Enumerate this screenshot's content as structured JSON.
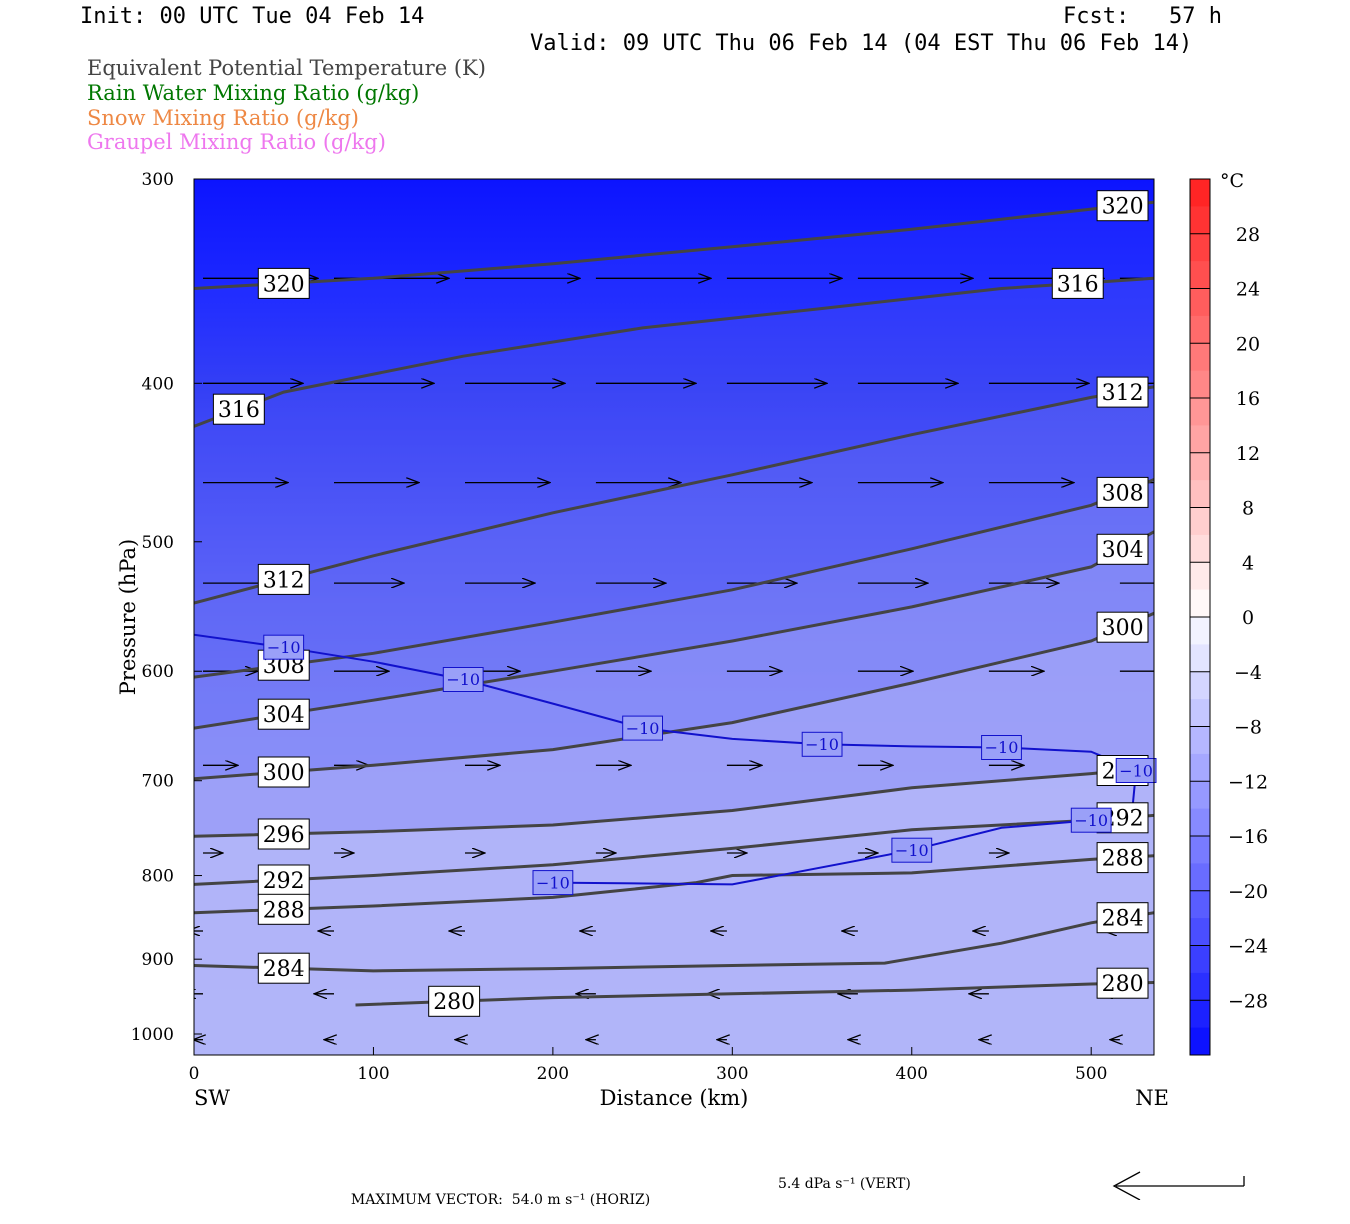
{
  "header": {
    "init": "Init: 00 UTC Tue 04 Feb 14",
    "fcst": "Fcst:   57 h",
    "valid": "Valid: 09 UTC Thu 06 Feb 14 (04 EST Thu 06 Feb 14)"
  },
  "legend": [
    {
      "text": "Equivalent Potential Temperature (K)",
      "color": "#444444"
    },
    {
      "text": "Rain Water Mixing Ratio (g/kg)",
      "color": "#007700"
    },
    {
      "text": "Snow Mixing Ratio (g/kg)",
      "color": "#ee8844"
    },
    {
      "text": "Graupel Mixing Ratio (g/kg)",
      "color": "#ee77ee"
    }
  ],
  "footer": {
    "max_vector_horiz": "MAXIMUM VECTOR:  54.0 m s⁻¹ (HORIZ)",
    "max_vector_vert": "5.4 dPa s⁻¹ (VERT)"
  },
  "chart_data": {
    "type": "heatmap",
    "xlabel": "Distance (km)",
    "ylabel": "Pressure (hPa)",
    "xlim": [
      0,
      535
    ],
    "ylim": [
      1030,
      300
    ],
    "y_scale": "log",
    "x_ticks": [
      0,
      100,
      200,
      300,
      400,
      500
    ],
    "y_ticks": [
      300,
      400,
      500,
      600,
      700,
      800,
      900,
      1000
    ],
    "x_end_labels": {
      "left": "SW",
      "right": "NE"
    },
    "colorbar": {
      "unit": "°C",
      "ticks": [
        28,
        24,
        20,
        16,
        12,
        8,
        4,
        0,
        -4,
        -8,
        -12,
        -16,
        -20,
        -24,
        -28
      ],
      "range": [
        -32,
        32
      ]
    },
    "theta_e_contours": [
      {
        "label": "320",
        "x": [
          0,
          100,
          200,
          300,
          400,
          500,
          535
        ],
        "y": [
          350,
          345,
          338,
          330,
          322,
          313,
          310
        ]
      },
      {
        "label": "316",
        "x": [
          0,
          50,
          150,
          250,
          350,
          450,
          535
        ],
        "y": [
          425,
          405,
          385,
          370,
          360,
          350,
          345
        ]
      },
      {
        "label": "312",
        "x": [
          0,
          100,
          200,
          300,
          400,
          500,
          535
        ],
        "y": [
          545,
          510,
          480,
          455,
          430,
          408,
          402
        ]
      },
      {
        "label": "308",
        "x": [
          0,
          100,
          200,
          300,
          400,
          500,
          535
        ],
        "y": [
          605,
          585,
          560,
          535,
          505,
          475,
          458
        ]
      },
      {
        "label": "304",
        "x": [
          0,
          100,
          200,
          300,
          400,
          500,
          535
        ],
        "y": [
          650,
          625,
          600,
          575,
          548,
          518,
          493
        ]
      },
      {
        "label": "300",
        "x": [
          0,
          100,
          200,
          300,
          400,
          500,
          535
        ],
        "y": [
          698,
          685,
          670,
          645,
          610,
          575,
          553
        ]
      },
      {
        "label": "296",
        "x": [
          0,
          100,
          200,
          300,
          400,
          500,
          535
        ],
        "y": [
          757,
          752,
          745,
          730,
          707,
          693,
          687
        ]
      },
      {
        "label": "292",
        "x": [
          0,
          100,
          200,
          300,
          400,
          500,
          535
        ],
        "y": [
          810,
          800,
          788,
          770,
          750,
          740,
          735
        ]
      },
      {
        "label": "288",
        "x": [
          0,
          100,
          200,
          280,
          300,
          400,
          500,
          535
        ],
        "y": [
          843,
          835,
          825,
          808,
          800,
          797,
          782,
          778
        ]
      },
      {
        "label": "284",
        "x": [
          0,
          100,
          200,
          300,
          385,
          450,
          500,
          535
        ],
        "y": [
          908,
          915,
          912,
          908,
          905,
          880,
          855,
          843
        ]
      },
      {
        "label": "280",
        "x": [
          90,
          200,
          300,
          400,
          500,
          535
        ],
        "y": [
          960,
          950,
          945,
          940,
          932,
          930
        ]
      }
    ],
    "isotherm_minus10": {
      "label": "-10",
      "x": [
        0,
        50,
        100,
        150,
        200,
        250,
        300,
        350,
        400,
        450,
        500,
        525,
        523,
        500,
        450,
        400,
        300,
        200
      ],
      "y": [
        570,
        580,
        592,
        607,
        628,
        650,
        660,
        665,
        667,
        668,
        672,
        690,
        727,
        740,
        748,
        772,
        810,
        808
      ]
    }
  }
}
